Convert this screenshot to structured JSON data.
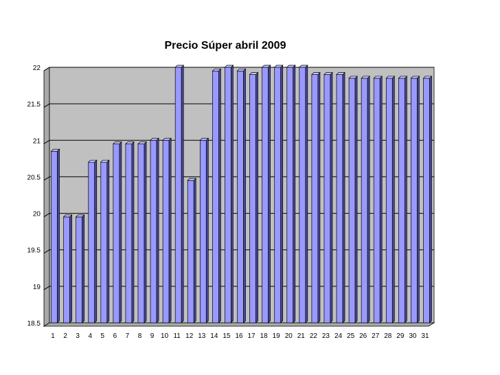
{
  "chart_data": {
    "type": "bar",
    "title": "Precio Súper abril 2009",
    "xlabel": "",
    "ylabel": "",
    "categories": [
      "1",
      "2",
      "3",
      "4",
      "5",
      "6",
      "7",
      "8",
      "9",
      "10",
      "11",
      "12",
      "13",
      "14",
      "15",
      "16",
      "17",
      "18",
      "19",
      "20",
      "21",
      "22",
      "23",
      "24",
      "25",
      "26",
      "27",
      "28",
      "29",
      "30",
      "31"
    ],
    "values": [
      20.85,
      19.95,
      19.95,
      20.7,
      20.7,
      20.95,
      20.95,
      20.95,
      21.0,
      21.0,
      22.0,
      20.45,
      21.0,
      21.95,
      22.0,
      21.95,
      21.9,
      22.0,
      22.0,
      22.0,
      22.0,
      21.9,
      21.9,
      21.9,
      21.85,
      21.85,
      21.85,
      21.85,
      21.85,
      21.85,
      21.85
    ],
    "yticks": [
      "18.5",
      "19",
      "19.5",
      "20",
      "20.5",
      "21",
      "21.5",
      "22"
    ],
    "ylim": [
      18.5,
      22
    ],
    "grid": true,
    "legend": "none",
    "colors": {
      "bar_front": "#9999ff",
      "bar_side": "#4a4a9a",
      "bar_top": "#c4c4ff",
      "wall": "#c0c0c0",
      "floor": "#a8a8a8",
      "grid": "#000000"
    }
  }
}
